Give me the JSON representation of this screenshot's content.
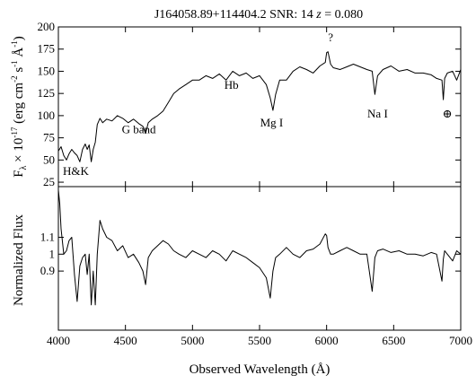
{
  "chart_data": [
    {
      "type": "line",
      "title_parts": {
        "name": "J164058.89+114404.2",
        "snr_label": "SNR:",
        "snr": "14",
        "z_symbol": "z",
        "z_value": "= 0.080"
      },
      "ylabel": {
        "main": "F",
        "sub": "λ",
        "times": " × 10",
        "exp": "-17",
        "units_open": " (erg cm",
        "exp2": "-2",
        "s": " s",
        "exp3": "-1",
        "ang": " Å",
        "exp4": "-1",
        "close": ")"
      },
      "xlim": [
        4000,
        7000
      ],
      "ylim": [
        20,
        200
      ],
      "yticks": [
        "25",
        "50",
        "75",
        "100",
        "125",
        "150",
        "175",
        "200"
      ],
      "annotations": [
        {
          "text": "H&K",
          "x": 4130,
          "y": 33
        },
        {
          "text": "G band",
          "x": 4600,
          "y": 80
        },
        {
          "text": "Hb",
          "x": 5290,
          "y": 130
        },
        {
          "text": "Mg I",
          "x": 5590,
          "y": 88
        },
        {
          "text": "?",
          "x": 6030,
          "y": 184
        },
        {
          "text": "Na I",
          "x": 6380,
          "y": 98
        },
        {
          "text": "⊕",
          "x": 6900,
          "y": 98
        }
      ],
      "series": [
        {
          "x": [
            4000,
            4020,
            4040,
            4060,
            4080,
            4100,
            4120,
            4140,
            4160,
            4180,
            4200,
            4215,
            4230,
            4245,
            4260,
            4275,
            4290,
            4310,
            4330,
            4360,
            4400,
            4440,
            4480,
            4520,
            4560,
            4600,
            4630,
            4650,
            4670,
            4700,
            4740,
            4780,
            4820,
            4860,
            4900,
            4950,
            5000,
            5050,
            5100,
            5150,
            5200,
            5250,
            5300,
            5350,
            5400,
            5450,
            5500,
            5550,
            5580,
            5600,
            5620,
            5650,
            5700,
            5750,
            5800,
            5850,
            5900,
            5950,
            5990,
            6000,
            6010,
            6030,
            6050,
            6100,
            6150,
            6200,
            6250,
            6300,
            6340,
            6360,
            6380,
            6420,
            6480,
            6540,
            6600,
            6660,
            6720,
            6780,
            6820,
            6860,
            6870,
            6880,
            6900,
            6940,
            6970,
            7000
          ],
          "y": [
            60,
            65,
            55,
            50,
            57,
            62,
            58,
            55,
            48,
            62,
            68,
            62,
            67,
            48,
            62,
            70,
            90,
            97,
            92,
            96,
            94,
            100,
            97,
            92,
            96,
            91,
            88,
            80,
            92,
            96,
            100,
            105,
            115,
            125,
            130,
            135,
            140,
            140,
            145,
            142,
            147,
            140,
            150,
            145,
            148,
            142,
            145,
            135,
            120,
            106,
            124,
            140,
            140,
            150,
            155,
            152,
            148,
            156,
            160,
            171,
            172,
            158,
            154,
            152,
            155,
            158,
            155,
            152,
            150,
            124,
            145,
            152,
            156,
            150,
            152,
            148,
            148,
            146,
            142,
            140,
            118,
            142,
            148,
            150,
            140,
            152
          ]
        }
      ]
    },
    {
      "type": "line",
      "xlabel": "Observed Wavelength (Å)",
      "ylabel": "Normalized Flux",
      "xlim": [
        4000,
        7000
      ],
      "ylim": [
        0.55,
        1.4
      ],
      "xticks": [
        "4000",
        "4500",
        "5000",
        "5500",
        "6000",
        "6500",
        "7000"
      ],
      "yticks": [
        "0.9",
        "1",
        "1.1"
      ],
      "series": [
        {
          "x": [
            4000,
            4010,
            4020,
            4040,
            4060,
            4080,
            4100,
            4120,
            4140,
            4160,
            4180,
            4200,
            4215,
            4230,
            4245,
            4260,
            4275,
            4290,
            4310,
            4330,
            4360,
            4400,
            4440,
            4480,
            4520,
            4560,
            4600,
            4630,
            4650,
            4670,
            4700,
            4740,
            4780,
            4820,
            4860,
            4900,
            4950,
            5000,
            5050,
            5100,
            5150,
            5200,
            5250,
            5300,
            5350,
            5400,
            5450,
            5500,
            5550,
            5580,
            5600,
            5620,
            5650,
            5700,
            5750,
            5800,
            5850,
            5900,
            5950,
            5990,
            6000,
            6010,
            6030,
            6050,
            6100,
            6150,
            6200,
            6250,
            6300,
            6340,
            6360,
            6380,
            6420,
            6480,
            6540,
            6600,
            6660,
            6720,
            6780,
            6820,
            6860,
            6870,
            6880,
            6900,
            6940,
            6970,
            7000
          ],
          "y": [
            1.38,
            1.3,
            1.15,
            1.0,
            1.02,
            1.08,
            1.1,
            0.88,
            0.72,
            0.93,
            0.98,
            1.0,
            0.88,
            1.0,
            0.7,
            0.9,
            0.7,
            1.0,
            1.2,
            1.15,
            1.1,
            1.08,
            1.02,
            1.05,
            0.98,
            1.0,
            0.95,
            0.9,
            0.82,
            0.98,
            1.02,
            1.05,
            1.08,
            1.06,
            1.02,
            1.0,
            0.98,
            1.02,
            1.0,
            0.98,
            1.02,
            1.0,
            0.96,
            1.02,
            1.0,
            0.98,
            0.95,
            0.92,
            0.86,
            0.74,
            0.9,
            0.98,
            1.0,
            1.04,
            1.0,
            0.98,
            1.02,
            1.03,
            1.06,
            1.12,
            1.11,
            1.04,
            1.0,
            1.0,
            1.02,
            1.04,
            1.02,
            1.0,
            1.0,
            0.78,
            0.98,
            1.02,
            1.03,
            1.01,
            1.02,
            1.0,
            1.0,
            0.99,
            1.01,
            1.0,
            0.84,
            0.97,
            1.02,
            1.0,
            0.96,
            1.02,
            1.0
          ]
        }
      ]
    }
  ]
}
